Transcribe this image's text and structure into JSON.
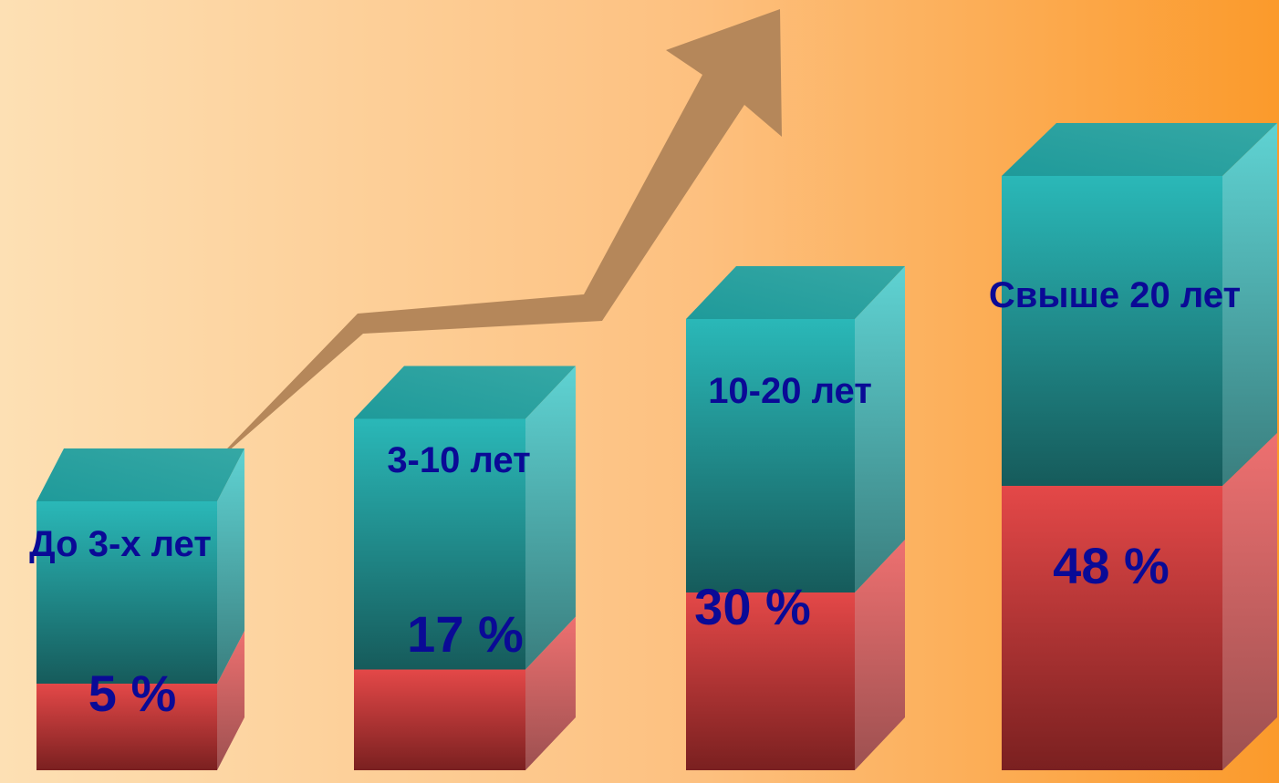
{
  "chart_data": {
    "type": "bar",
    "style": "3d-stacked-column",
    "categories": [
      "До 3-х лет",
      "3-10 лет",
      "10-20 лет",
      "Свыше 20 лет"
    ],
    "values": [
      5,
      17,
      30,
      48
    ],
    "value_labels": [
      "5 %",
      "17 %",
      "30 %",
      "48 %"
    ],
    "ylim": [
      0,
      60
    ],
    "grid": false,
    "legend": "none",
    "decoration": "upward-trend-arrow",
    "colors": {
      "background_left": "#fde0b4",
      "background_mid": "#fdc07f",
      "background_right": "#fb9a2b",
      "teal_top": "#2ab5b5",
      "teal_bottom": "#176060",
      "red_top": "#e44848",
      "red_bottom": "#7a2020",
      "arrow": "#b5875a",
      "label_text": "#0a0a96"
    }
  }
}
